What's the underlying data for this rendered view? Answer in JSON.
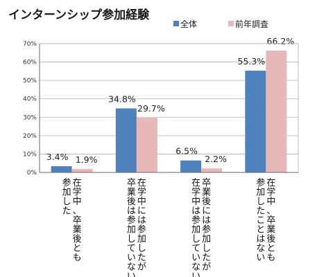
{
  "chart_data": {
    "type": "bar",
    "title": "インターンシップ参加経験",
    "categories": [
      [
        "在学中、卒業後とも",
        "参加した"
      ],
      [
        "在学中には参加したが",
        "卒業後は参加していない"
      ],
      [
        "卒業後には参加したが",
        "在学中は参加していない"
      ],
      [
        "在学中、卒業後とも",
        "参加したことはない"
      ]
    ],
    "series": [
      {
        "name": "全体",
        "values": [
          3.4,
          34.8,
          6.5,
          55.3
        ],
        "labels": [
          "3.4%",
          "34.8%",
          "6.5%",
          "55.3%"
        ],
        "color": "#4f81bd"
      },
      {
        "name": "前年調査",
        "values": [
          1.9,
          29.7,
          2.2,
          66.2
        ],
        "labels": [
          "1.9%",
          "29.7%",
          "2.2%",
          "66.2%"
        ],
        "color": "#e6b9b8"
      }
    ],
    "ylim": [
      0,
      70
    ],
    "yticks": [
      0,
      10,
      20,
      30,
      40,
      50,
      60,
      70
    ],
    "ytick_labels": [
      "0%",
      "10%",
      "20%",
      "30%",
      "40%",
      "50%",
      "60%",
      "70%"
    ],
    "grid": true,
    "legend": "top-right"
  }
}
